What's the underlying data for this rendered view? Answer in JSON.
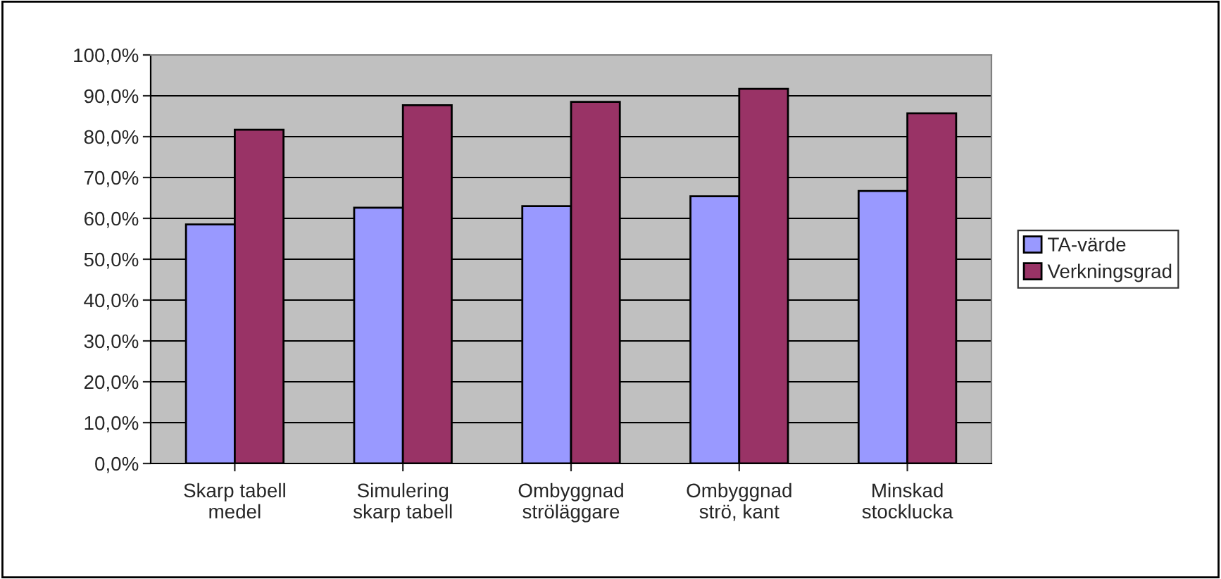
{
  "chart_data": {
    "type": "bar",
    "categories": [
      "Skarp tabell\nmedel",
      "Simulering\nskarp tabell",
      "Ombyggnad\nströläggare",
      "Ombyggnad\nströ, kant",
      "Minskad\nstocklucka"
    ],
    "series": [
      {
        "name": "TA-värde",
        "color": "#9999ff",
        "values": [
          58.5,
          62.6,
          63.0,
          65.4,
          66.7
        ]
      },
      {
        "name": "Verkningsgrad",
        "color": "#993366",
        "values": [
          81.7,
          87.7,
          88.5,
          91.7,
          85.7
        ]
      }
    ],
    "ylim": [
      0,
      100
    ],
    "yticks": [
      {
        "value": 0,
        "label": "0,0%"
      },
      {
        "value": 10,
        "label": "10,0%"
      },
      {
        "value": 20,
        "label": "20,0%"
      },
      {
        "value": 30,
        "label": "30,0%"
      },
      {
        "value": 40,
        "label": "40,0%"
      },
      {
        "value": 50,
        "label": "50,0%"
      },
      {
        "value": 60,
        "label": "60,0%"
      },
      {
        "value": 70,
        "label": "70,0%"
      },
      {
        "value": 80,
        "label": "80,0%"
      },
      {
        "value": 90,
        "label": "90,0%"
      },
      {
        "value": 100,
        "label": "100,0%"
      }
    ],
    "grid": "y",
    "legend": "right"
  }
}
